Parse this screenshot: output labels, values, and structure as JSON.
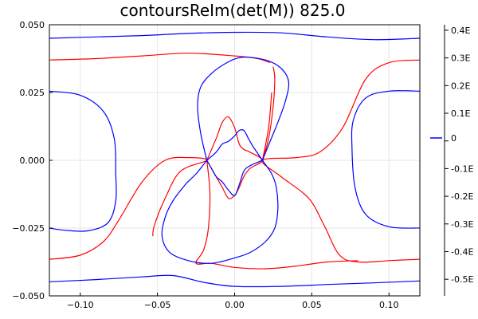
{
  "chart_data": {
    "type": "line",
    "title": "contoursReIm(det(M)) 825.0",
    "xlabel": "",
    "ylabel": "",
    "xlim": [
      -0.12,
      0.12
    ],
    "ylim": [
      -0.05,
      0.05
    ],
    "grid": true,
    "x_ticks": [
      {
        "value": -0.1,
        "label": "−0.10"
      },
      {
        "value": -0.05,
        "label": "−0.05"
      },
      {
        "value": 0.0,
        "label": "0.00"
      },
      {
        "value": 0.05,
        "label": "0.05"
      },
      {
        "value": 0.1,
        "label": "0.10"
      }
    ],
    "y_ticks": [
      {
        "value": 0.05,
        "label": "0.050"
      },
      {
        "value": 0.025,
        "label": "0.025"
      },
      {
        "value": 0.0,
        "label": "0.000"
      },
      {
        "value": -0.025,
        "label": "−0.025"
      },
      {
        "value": -0.05,
        "label": "−0.050"
      }
    ],
    "colorbar": {
      "tick_labels": [
        "0.4E",
        "0.3E",
        "0.2E",
        "0.1E",
        "0",
        "-0.1E",
        "-0.2E",
        "-0.3E",
        "-0.4E",
        "-0.5E"
      ],
      "tick_values": [
        0.4,
        0.3,
        0.2,
        0.1,
        0.0,
        -0.1,
        -0.2,
        -0.3,
        -0.4,
        -0.5
      ],
      "range": [
        -0.56,
        0.42
      ],
      "legend_value": 0
    },
    "colors": {
      "real": "#ff0000",
      "imag": "#0000ff"
    },
    "series": [
      {
        "color": "blue",
        "points": [
          [
            -0.12,
            0.045
          ],
          [
            -0.09,
            0.0455
          ],
          [
            -0.06,
            0.046
          ],
          [
            -0.03,
            0.0468
          ],
          [
            0.0,
            0.0472
          ],
          [
            0.03,
            0.047
          ],
          [
            0.06,
            0.0455
          ],
          [
            0.09,
            0.0445
          ],
          [
            0.12,
            0.045
          ]
        ]
      },
      {
        "color": "red",
        "points": [
          [
            -0.12,
            0.037
          ],
          [
            -0.09,
            0.0375
          ],
          [
            -0.06,
            0.0385
          ],
          [
            -0.03,
            0.0395
          ],
          [
            0.0,
            0.0385
          ],
          [
            0.015,
            0.0375
          ],
          [
            0.023,
            0.036
          ]
        ]
      },
      {
        "color": "red",
        "points": [
          [
            0.025,
            0.0345
          ],
          [
            0.026,
            0.03
          ],
          [
            0.025,
            0.02
          ],
          [
            0.022,
            0.008
          ],
          [
            0.018,
            0.0
          ]
        ]
      },
      {
        "color": "blue",
        "points": [
          [
            -0.12,
            0.0255
          ],
          [
            -0.1,
            0.024
          ],
          [
            -0.085,
            0.018
          ],
          [
            -0.078,
            0.008
          ],
          [
            -0.077,
            -0.005
          ],
          [
            -0.077,
            -0.015
          ],
          [
            -0.082,
            -0.023
          ],
          [
            -0.095,
            -0.026
          ],
          [
            -0.11,
            -0.0258
          ],
          [
            -0.12,
            -0.025
          ]
        ]
      },
      {
        "color": "blue",
        "points": [
          [
            0.12,
            0.0255
          ],
          [
            0.1,
            0.0255
          ],
          [
            0.085,
            0.023
          ],
          [
            0.077,
            0.015
          ],
          [
            0.076,
            0.005
          ],
          [
            0.078,
            -0.01
          ],
          [
            0.085,
            -0.02
          ],
          [
            0.1,
            -0.0245
          ],
          [
            0.12,
            -0.025
          ]
        ]
      },
      {
        "color": "red",
        "points": [
          [
            0.12,
            0.037
          ],
          [
            0.1,
            0.036
          ],
          [
            0.085,
            0.03
          ],
          [
            0.07,
            0.012
          ],
          [
            0.055,
            0.003
          ],
          [
            0.04,
            0.001
          ],
          [
            0.018,
            0.0
          ],
          [
            0.03,
            -0.006
          ],
          [
            0.048,
            -0.014
          ],
          [
            0.058,
            -0.024
          ],
          [
            0.068,
            -0.035
          ],
          [
            0.08,
            -0.0375
          ],
          [
            0.1,
            -0.037
          ],
          [
            0.12,
            -0.0365
          ]
        ]
      },
      {
        "color": "red",
        "points": [
          [
            -0.12,
            -0.0365
          ],
          [
            -0.1,
            -0.035
          ],
          [
            -0.085,
            -0.03
          ],
          [
            -0.075,
            -0.022
          ],
          [
            -0.06,
            -0.008
          ],
          [
            -0.045,
            0.0
          ],
          [
            -0.03,
            0.001
          ],
          [
            -0.018,
            0.0
          ],
          [
            -0.035,
            -0.004
          ],
          [
            -0.045,
            -0.014
          ],
          [
            -0.052,
            -0.024
          ],
          [
            -0.053,
            -0.028
          ]
        ]
      },
      {
        "color": "red",
        "points": [
          [
            -0.018,
            0.0
          ],
          [
            -0.016,
            -0.012
          ],
          [
            -0.017,
            -0.025
          ],
          [
            -0.02,
            -0.033
          ],
          [
            -0.025,
            -0.038
          ],
          [
            -0.015,
            -0.038
          ],
          [
            0.0,
            -0.0395
          ],
          [
            0.02,
            -0.04
          ],
          [
            0.04,
            -0.039
          ],
          [
            0.06,
            -0.0375
          ],
          [
            0.08,
            -0.037
          ]
        ]
      },
      {
        "color": "red",
        "points": [
          [
            -0.018,
            0.0
          ],
          [
            -0.012,
            0.008
          ],
          [
            -0.008,
            0.014
          ],
          [
            -0.004,
            0.016
          ],
          [
            0.0,
            0.012
          ],
          [
            0.003,
            0.006
          ],
          [
            0.006,
            0.004
          ],
          [
            0.01,
            0.003
          ],
          [
            0.018,
            0.0
          ],
          [
            0.01,
            -0.003
          ],
          [
            0.006,
            -0.006
          ],
          [
            0.003,
            -0.01
          ],
          [
            0.0,
            -0.013
          ],
          [
            -0.004,
            -0.014
          ],
          [
            -0.008,
            -0.01
          ],
          [
            -0.012,
            -0.006
          ],
          [
            -0.018,
            0.0
          ]
        ]
      },
      {
        "color": "red",
        "points": [
          [
            0.018,
            0.0
          ],
          [
            0.022,
            0.012
          ],
          [
            0.024,
            0.025
          ]
        ]
      },
      {
        "color": "blue",
        "points": [
          [
            -0.018,
            0.0
          ],
          [
            -0.022,
            0.01
          ],
          [
            -0.024,
            0.02
          ],
          [
            -0.022,
            0.027
          ],
          [
            -0.015,
            0.032
          ],
          [
            -0.005,
            0.036
          ],
          [
            0.005,
            0.038
          ],
          [
            0.02,
            0.037
          ],
          [
            0.03,
            0.034
          ],
          [
            0.035,
            0.029
          ],
          [
            0.033,
            0.022
          ],
          [
            0.028,
            0.014
          ],
          [
            0.023,
            0.007
          ],
          [
            0.018,
            0.0
          ]
        ]
      },
      {
        "color": "blue",
        "points": [
          [
            -0.018,
            0.0
          ],
          [
            -0.012,
            0.003
          ],
          [
            -0.008,
            0.006
          ],
          [
            -0.004,
            0.007
          ],
          [
            0.0,
            0.009
          ],
          [
            0.003,
            0.011
          ],
          [
            0.006,
            0.011
          ],
          [
            0.009,
            0.008
          ],
          [
            0.012,
            0.005
          ],
          [
            0.018,
            0.0
          ],
          [
            0.024,
            -0.005
          ],
          [
            0.027,
            -0.01
          ],
          [
            0.028,
            -0.018
          ],
          [
            0.026,
            -0.025
          ],
          [
            0.02,
            -0.03
          ],
          [
            0.01,
            -0.034
          ],
          [
            0.0,
            -0.036
          ],
          [
            -0.015,
            -0.038
          ],
          [
            -0.03,
            -0.037
          ],
          [
            -0.042,
            -0.034
          ],
          [
            -0.047,
            -0.028
          ],
          [
            -0.045,
            -0.021
          ],
          [
            -0.04,
            -0.015
          ],
          [
            -0.032,
            -0.009
          ],
          [
            -0.025,
            -0.005
          ],
          [
            -0.018,
            0.0
          ]
        ]
      },
      {
        "color": "blue",
        "points": [
          [
            -0.018,
            0.0
          ],
          [
            -0.015,
            -0.003
          ],
          [
            -0.012,
            -0.006
          ],
          [
            -0.008,
            -0.008
          ],
          [
            -0.004,
            -0.011
          ],
          [
            0.0,
            -0.013
          ],
          [
            0.003,
            -0.009
          ],
          [
            0.006,
            -0.004
          ],
          [
            0.01,
            -0.002
          ],
          [
            0.018,
            0.0
          ]
        ]
      },
      {
        "color": "blue",
        "points": [
          [
            -0.12,
            -0.0448
          ],
          [
            -0.09,
            -0.044
          ],
          [
            -0.06,
            -0.043
          ],
          [
            -0.04,
            -0.0425
          ],
          [
            -0.02,
            -0.045
          ],
          [
            0.0,
            -0.0465
          ],
          [
            0.03,
            -0.0465
          ],
          [
            0.06,
            -0.0458
          ],
          [
            0.09,
            -0.0452
          ],
          [
            0.12,
            -0.0445
          ]
        ]
      }
    ]
  }
}
